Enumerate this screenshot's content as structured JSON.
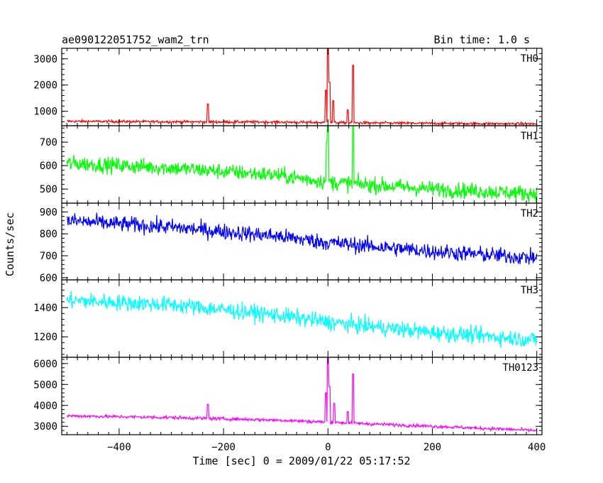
{
  "header": {
    "left": "ae090122051752_wam2_trn",
    "right": "Bin time: 1.0 s"
  },
  "ylabel": "Counts/sec",
  "xlabel": "Time [sec] 0 = 2009/01/22 05:17:52",
  "chart_data": {
    "type": "line",
    "shared_x": {
      "xlim": [
        -510,
        410
      ],
      "ticks": [
        -400,
        -200,
        0,
        200,
        400
      ],
      "tick_labels": [
        "−400",
        "−200",
        "0",
        "200",
        "400"
      ]
    },
    "panels": [
      {
        "name": "TH0",
        "color": "#ff0000",
        "ylim": [
          450,
          3400
        ],
        "yticks": [
          1000,
          2000,
          3000
        ],
        "baseline": [
          [
            -500,
            620
          ],
          [
            -300,
            600
          ],
          [
            -100,
            590
          ],
          [
            0,
            570
          ],
          [
            200,
            540
          ],
          [
            400,
            520
          ]
        ],
        "noise": 35,
        "spikes": [
          {
            "x": -230,
            "y": 1280,
            "w": 2
          },
          {
            "x": -4,
            "y": 1800,
            "w": 3
          },
          {
            "x": 0,
            "y": 3380,
            "w": 2
          },
          {
            "x": 3,
            "y": 2100,
            "w": 2
          },
          {
            "x": 10,
            "y": 1400,
            "w": 3
          },
          {
            "x": 38,
            "y": 1050,
            "w": 3
          },
          {
            "x": 48,
            "y": 2750,
            "w": 2
          }
        ]
      },
      {
        "name": "TH1",
        "color": "#00ff00",
        "ylim": [
          440,
          770
        ],
        "yticks": [
          500,
          600,
          700
        ],
        "baseline": [
          [
            -500,
            610
          ],
          [
            -300,
            590
          ],
          [
            -100,
            560
          ],
          [
            0,
            530
          ],
          [
            200,
            500
          ],
          [
            400,
            480
          ]
        ],
        "noise": 24,
        "spikes": [
          {
            "x": -2,
            "y": 700,
            "w": 2
          },
          {
            "x": 0,
            "y": 770,
            "w": 3
          },
          {
            "x": 48,
            "y": 770,
            "w": 2
          }
        ]
      },
      {
        "name": "TH2",
        "color": "#0000ff",
        "ylim": [
          590,
          940
        ],
        "yticks": [
          600,
          700,
          800,
          900
        ],
        "baseline": [
          [
            -500,
            860
          ],
          [
            -300,
            830
          ],
          [
            -100,
            790
          ],
          [
            0,
            760
          ],
          [
            200,
            720
          ],
          [
            400,
            690
          ]
        ],
        "noise": 26,
        "spikes": []
      },
      {
        "name": "TH3",
        "color": "#00ffff",
        "ylim": [
          1060,
          1590
        ],
        "yticks": [
          1200,
          1400
        ],
        "baseline": [
          [
            -500,
            1450
          ],
          [
            -300,
            1420
          ],
          [
            -100,
            1350
          ],
          [
            0,
            1300
          ],
          [
            200,
            1230
          ],
          [
            400,
            1180
          ]
        ],
        "noise": 40,
        "spikes": []
      },
      {
        "name": "TH0123",
        "color": "#ff00ff",
        "ylim": [
          2600,
          6300
        ],
        "yticks": [
          3000,
          4000,
          5000,
          6000
        ],
        "baseline": [
          [
            -500,
            3500
          ],
          [
            -300,
            3420
          ],
          [
            -100,
            3300
          ],
          [
            0,
            3200
          ],
          [
            200,
            3000
          ],
          [
            400,
            2800
          ]
        ],
        "noise": 55,
        "spikes": [
          {
            "x": -230,
            "y": 4050,
            "w": 2
          },
          {
            "x": -4,
            "y": 4600,
            "w": 3
          },
          {
            "x": 0,
            "y": 6250,
            "w": 2
          },
          {
            "x": 3,
            "y": 4900,
            "w": 2
          },
          {
            "x": 12,
            "y": 4100,
            "w": 3
          },
          {
            "x": 38,
            "y": 3700,
            "w": 3
          },
          {
            "x": 48,
            "y": 5500,
            "w": 2
          }
        ]
      }
    ]
  }
}
